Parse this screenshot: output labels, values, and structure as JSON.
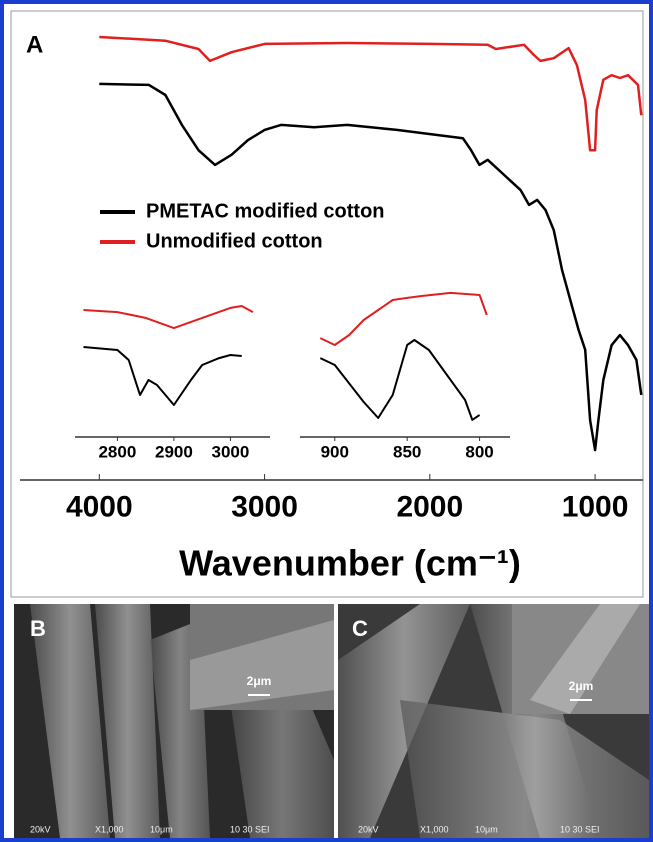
{
  "chart_data": [
    {
      "type": "line",
      "panel_label": "A",
      "x_label": "Wavenumber (cm⁻¹)",
      "xlim": [
        4480,
        710
      ],
      "xticks": [
        4000,
        3000,
        2000,
        1000
      ],
      "ylim": [
        0,
        100
      ],
      "grid": false,
      "legend": "center-left",
      "series": [
        {
          "name": "PMETAC modified cotton",
          "color": "#000000",
          "x": [
            4000,
            3700,
            3600,
            3500,
            3400,
            3300,
            3200,
            3100,
            3000,
            2900,
            2700,
            2500,
            2200,
            1800,
            1750,
            1700,
            1650,
            1550,
            1450,
            1400,
            1350,
            1300,
            1250,
            1200,
            1150,
            1100,
            1060,
            1030,
            1000,
            980,
            950,
            900,
            850,
            800,
            750,
            720
          ],
          "values": [
            86.1,
            85.9,
            83.7,
            77.2,
            71.7,
            68.5,
            70.7,
            73.9,
            76.1,
            77.2,
            76.7,
            77.2,
            76.1,
            74.3,
            71.7,
            68.5,
            69.6,
            66.3,
            63.0,
            59.8,
            60.9,
            58.7,
            54.3,
            45.7,
            39.1,
            32.6,
            28.3,
            13.0,
            6.5,
            13.0,
            21.7,
            29.3,
            31.5,
            29.3,
            26.1,
            18.5
          ]
        },
        {
          "name": "Unmodified cotton",
          "color": "#e02020",
          "x": [
            4000,
            3600,
            3400,
            3330,
            3200,
            3000,
            2500,
            2000,
            1650,
            1600,
            1430,
            1370,
            1330,
            1250,
            1160,
            1110,
            1060,
            1030,
            1000,
            990,
            950,
            900,
            850,
            800,
            740,
            720
          ],
          "values": [
            96.3,
            95.5,
            93.7,
            91.1,
            93.0,
            94.8,
            95.0,
            94.8,
            94.6,
            93.7,
            94.6,
            92.4,
            91.1,
            91.7,
            93.9,
            90.2,
            82.6,
            71.7,
            71.7,
            80.4,
            87.0,
            88.0,
            87.4,
            88.0,
            85.9,
            79.3
          ]
        }
      ]
    },
    {
      "type": "line",
      "xlim": [
        2725,
        3070
      ],
      "xticks": [
        2800,
        2900,
        3000
      ],
      "ylim": [
        0,
        100
      ],
      "series": [
        {
          "color": "#000000",
          "x": [
            2740,
            2800,
            2820,
            2840,
            2855,
            2870,
            2900,
            2930,
            2950,
            2980,
            3000,
            3020
          ],
          "values": [
            61.2,
            59.2,
            52.4,
            28.6,
            38.8,
            35.4,
            21.8,
            38.8,
            49.0,
            53.7,
            55.8,
            55.1
          ]
        },
        {
          "color": "#e02020",
          "x": [
            2740,
            2800,
            2850,
            2900,
            2950,
            3000,
            3020,
            3040
          ],
          "values": [
            86.4,
            85.0,
            81.0,
            74.1,
            81.0,
            87.8,
            89.1,
            85.0
          ]
        }
      ]
    },
    {
      "type": "line",
      "xlim": [
        924,
        779
      ],
      "xticks": [
        900,
        850,
        800
      ],
      "ylim": [
        0,
        100
      ],
      "series": [
        {
          "color": "#000000",
          "x": [
            910,
            900,
            880,
            870,
            860,
            850,
            845,
            835,
            820,
            810,
            805,
            800
          ],
          "values": [
            53.7,
            49.0,
            23.8,
            12.9,
            28.6,
            62.6,
            66.0,
            59.2,
            38.8,
            25.2,
            11.6,
            15.0
          ]
        },
        {
          "color": "#e02020",
          "x": [
            910,
            900,
            890,
            880,
            860,
            850,
            840,
            820,
            800,
            795
          ],
          "values": [
            67.3,
            62.6,
            69.4,
            79.6,
            93.2,
            94.6,
            95.9,
            98.0,
            96.6,
            83.0
          ]
        }
      ]
    }
  ],
  "images": [
    {
      "label": "B",
      "inset_scale": "2μm",
      "footer": [
        "20kV",
        "X1,000",
        "10μm",
        "10 30 SEI"
      ]
    },
    {
      "label": "C",
      "inset_scale": "2μm",
      "footer": [
        "20kV",
        "X1,000",
        "10μm",
        "10 30 SEI"
      ]
    }
  ]
}
